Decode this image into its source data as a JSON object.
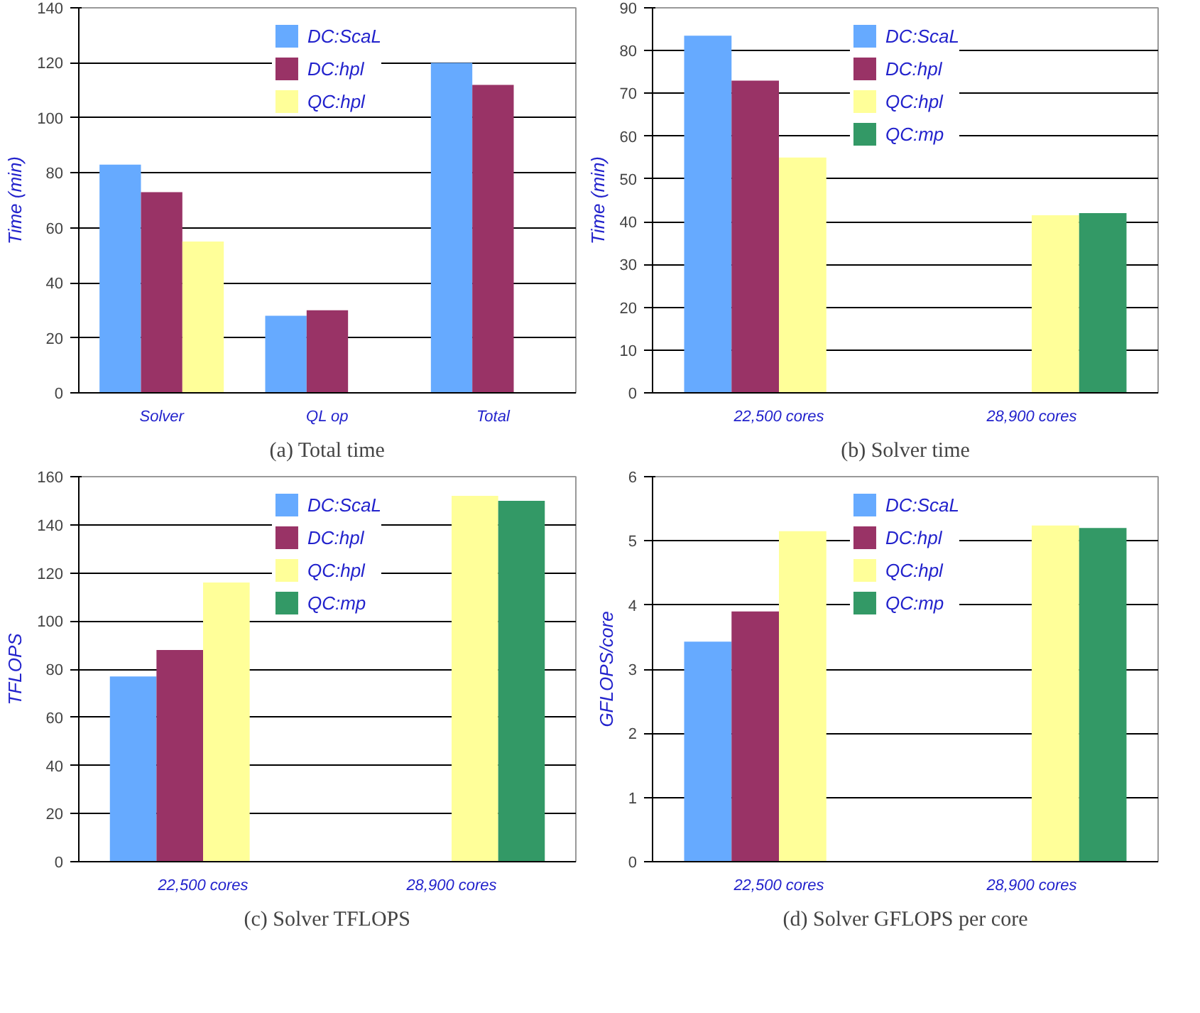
{
  "chart_data": [
    {
      "type": "bar",
      "title": "(a) Total time",
      "ylabel": "Time (min)",
      "categories": [
        "Solver",
        "QL op",
        "Total"
      ],
      "ylim": [
        0,
        140
      ],
      "yticks": [
        0,
        20,
        40,
        60,
        80,
        100,
        120,
        140
      ],
      "grid": "y",
      "legend": "top",
      "series": [
        {
          "name": "DC:ScaL",
          "color": "#66aaff",
          "values": [
            83,
            28,
            120
          ]
        },
        {
          "name": "DC:hpl",
          "color": "#993366",
          "values": [
            73,
            30,
            112
          ]
        },
        {
          "name": "QC:hpl",
          "color": "#ffff99",
          "values": [
            55,
            null,
            null
          ]
        }
      ]
    },
    {
      "type": "bar",
      "title": "(b) Solver time",
      "ylabel": "Time (min)",
      "categories": [
        "22,500 cores",
        "28,900 cores"
      ],
      "ylim": [
        0,
        90
      ],
      "yticks": [
        0,
        10,
        20,
        30,
        40,
        50,
        60,
        70,
        80,
        90
      ],
      "grid": "y",
      "legend": "top",
      "series": [
        {
          "name": "DC:ScaL",
          "color": "#66aaff",
          "values": [
            83.5,
            null
          ]
        },
        {
          "name": "DC:hpl",
          "color": "#993366",
          "values": [
            73,
            null
          ]
        },
        {
          "name": "QC:hpl",
          "color": "#ffff99",
          "values": [
            55,
            41.5
          ]
        },
        {
          "name": "QC:mp",
          "color": "#339966",
          "values": [
            null,
            42
          ]
        }
      ]
    },
    {
      "type": "bar",
      "title": "(c) Solver TFLOPS",
      "ylabel": "TFLOPS",
      "categories": [
        "22,500 cores",
        "28,900 cores"
      ],
      "ylim": [
        0,
        160
      ],
      "yticks": [
        0,
        20,
        40,
        60,
        80,
        100,
        120,
        140,
        160
      ],
      "grid": "y",
      "legend": "top",
      "series": [
        {
          "name": "DC:ScaL",
          "color": "#66aaff",
          "values": [
            77,
            null
          ]
        },
        {
          "name": "DC:hpl",
          "color": "#993366",
          "values": [
            88,
            null
          ]
        },
        {
          "name": "QC:hpl",
          "color": "#ffff99",
          "values": [
            116,
            152
          ]
        },
        {
          "name": "QC:mp",
          "color": "#339966",
          "values": [
            null,
            150
          ]
        }
      ]
    },
    {
      "type": "bar",
      "title": "(d) Solver GFLOPS per core",
      "ylabel": "GFLOPS/core",
      "categories": [
        "22,500 cores",
        "28,900 cores"
      ],
      "ylim": [
        0,
        6
      ],
      "yticks": [
        0,
        1,
        2,
        3,
        4,
        5,
        6
      ],
      "grid": "y",
      "legend": "top",
      "series": [
        {
          "name": "DC:ScaL",
          "color": "#66aaff",
          "values": [
            3.43,
            null
          ]
        },
        {
          "name": "DC:hpl",
          "color": "#993366",
          "values": [
            3.9,
            null
          ]
        },
        {
          "name": "QC:hpl",
          "color": "#ffff99",
          "values": [
            5.15,
            5.24
          ]
        },
        {
          "name": "QC:mp",
          "color": "#339966",
          "values": [
            null,
            5.2
          ]
        }
      ]
    }
  ]
}
